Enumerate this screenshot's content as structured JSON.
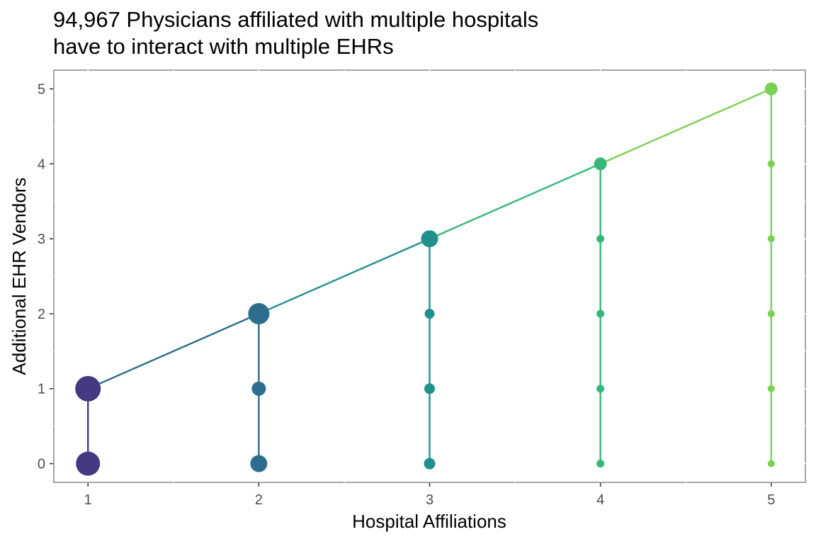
{
  "chart_data": {
    "type": "scatter",
    "title_lines": [
      "94,967 Physicians affiliated with multiple hospitals",
      "have to interact with multiple EHRs"
    ],
    "xlabel": "Hospital Affiliations",
    "ylabel": "Additional EHR Vendors",
    "xlim": [
      0.8,
      5.2
    ],
    "ylim": [
      -0.25,
      5.25
    ],
    "x_ticks": [
      1,
      2,
      3,
      4,
      5
    ],
    "x_tick_labels": [
      "1",
      "2",
      "3",
      "4",
      "5"
    ],
    "y_ticks": [
      0,
      1,
      2,
      3,
      4,
      5
    ],
    "y_tick_labels": [
      "0",
      "1",
      "2",
      "3",
      "4",
      "5"
    ],
    "grid": "white major/minor gridlines on white panel",
    "legend": "none",
    "size_encoding": "relative point size (larger = more physicians)",
    "series": [
      {
        "name": "1",
        "color": "#443A83",
        "points": [
          {
            "x": 1,
            "y": 0,
            "size": 17
          },
          {
            "x": 1,
            "y": 1,
            "size": 18
          }
        ]
      },
      {
        "name": "2",
        "color": "#2D6E8E",
        "points": [
          {
            "x": 2,
            "y": 0,
            "size": 12
          },
          {
            "x": 2,
            "y": 1,
            "size": 10
          },
          {
            "x": 2,
            "y": 2,
            "size": 15
          }
        ]
      },
      {
        "name": "3",
        "color": "#21908C",
        "points": [
          {
            "x": 3,
            "y": 0,
            "size": 8
          },
          {
            "x": 3,
            "y": 1,
            "size": 7.5
          },
          {
            "x": 3,
            "y": 2,
            "size": 7
          },
          {
            "x": 3,
            "y": 3,
            "size": 12
          }
        ]
      },
      {
        "name": "4",
        "color": "#35B779",
        "points": [
          {
            "x": 4,
            "y": 0,
            "size": 5.5
          },
          {
            "x": 4,
            "y": 1,
            "size": 5.5
          },
          {
            "x": 4,
            "y": 2,
            "size": 5.5
          },
          {
            "x": 4,
            "y": 3,
            "size": 5.5
          },
          {
            "x": 4,
            "y": 4,
            "size": 9
          }
        ]
      },
      {
        "name": "5",
        "color": "#7AD151",
        "points": [
          {
            "x": 5,
            "y": 0,
            "size": 5
          },
          {
            "x": 5,
            "y": 1,
            "size": 5
          },
          {
            "x": 5,
            "y": 2,
            "size": 5
          },
          {
            "x": 5,
            "y": 3,
            "size": 5
          },
          {
            "x": 5,
            "y": 4,
            "size": 5
          },
          {
            "x": 5,
            "y": 5,
            "size": 9
          }
        ]
      }
    ],
    "diagonal_line": {
      "points": [
        {
          "x": 1,
          "y": 1
        },
        {
          "x": 2,
          "y": 2
        },
        {
          "x": 3,
          "y": 3
        },
        {
          "x": 4,
          "y": 4
        },
        {
          "x": 5,
          "y": 5
        }
      ]
    }
  }
}
